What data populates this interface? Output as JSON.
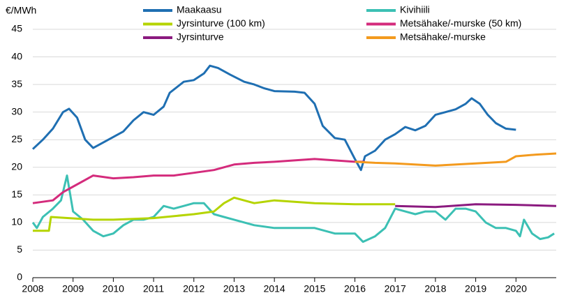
{
  "chart_data": {
    "type": "line",
    "y_label": "€/MWh",
    "xlim": [
      2008,
      2021
    ],
    "xticks": [
      2008,
      2009,
      2010,
      2011,
      2012,
      2013,
      2014,
      2015,
      2016,
      2017,
      2018,
      2019,
      2020
    ],
    "ylim": [
      0,
      45
    ],
    "yticks": [
      0,
      5,
      10,
      15,
      20,
      25,
      30,
      35,
      40,
      45
    ],
    "grid": true,
    "series": [
      {
        "name": "Maakaasu",
        "color": "#1f6fb2",
        "x": [
          2008.0,
          2008.25,
          2008.5,
          2008.75,
          2008.9,
          2009.1,
          2009.3,
          2009.5,
          2009.75,
          2010.0,
          2010.25,
          2010.5,
          2010.75,
          2011.0,
          2011.25,
          2011.4,
          2011.75,
          2012.0,
          2012.25,
          2012.4,
          2012.6,
          2012.9,
          2013.25,
          2013.5,
          2013.75,
          2014.0,
          2014.5,
          2014.75,
          2015.0,
          2015.2,
          2015.5,
          2015.75,
          2016.0,
          2016.15,
          2016.25,
          2016.5,
          2016.75,
          2017.0,
          2017.25,
          2017.5,
          2017.75,
          2018.0,
          2018.25,
          2018.5,
          2018.75,
          2018.9,
          2019.1,
          2019.3,
          2019.5,
          2019.75,
          2020.0
        ],
        "values": [
          23.3,
          25,
          27,
          30,
          30.6,
          29,
          25,
          23.5,
          24.5,
          25.5,
          26.5,
          28.5,
          30,
          29.5,
          31,
          33.5,
          35.5,
          35.8,
          37,
          38.4,
          38,
          36.8,
          35.5,
          35,
          34.3,
          33.8,
          33.7,
          33.5,
          31.5,
          27.5,
          25.3,
          25,
          21.5,
          19.5,
          22,
          23,
          25,
          26,
          27.3,
          26.7,
          27.5,
          29.5,
          30,
          30.5,
          31.5,
          32.5,
          31.5,
          29.5,
          28,
          27,
          26.8
        ]
      },
      {
        "name": "Kivihiili",
        "color": "#3cc0b4",
        "x": [
          2008.0,
          2008.1,
          2008.25,
          2008.5,
          2008.7,
          2008.85,
          2009.0,
          2009.25,
          2009.5,
          2009.75,
          2010.0,
          2010.25,
          2010.5,
          2010.75,
          2011.0,
          2011.25,
          2011.5,
          2011.75,
          2012.0,
          2012.25,
          2012.5,
          2012.75,
          2013.0,
          2013.5,
          2014.0,
          2014.5,
          2015.0,
          2015.5,
          2016.0,
          2016.2,
          2016.5,
          2016.75,
          2017.0,
          2017.25,
          2017.5,
          2017.75,
          2018.0,
          2018.25,
          2018.5,
          2018.75,
          2019.0,
          2019.25,
          2019.5,
          2019.75,
          2020.0,
          2020.1,
          2020.2,
          2020.4,
          2020.6,
          2020.8,
          2020.95
        ],
        "values": [
          10,
          9,
          11,
          12.5,
          14,
          18.5,
          12,
          10.5,
          8.5,
          7.5,
          8,
          9.5,
          10.5,
          10.5,
          11,
          13,
          12.5,
          13,
          13.5,
          13.5,
          11.5,
          11,
          10.5,
          9.5,
          9,
          9,
          9,
          8,
          8,
          6.5,
          7.5,
          9,
          12.5,
          12,
          11.5,
          12,
          12,
          10.5,
          12.5,
          12.5,
          12,
          10,
          9,
          9,
          8.5,
          7.5,
          10.5,
          8,
          7,
          7.3,
          8
        ]
      },
      {
        "name": "Jyrsinturve (100 km)",
        "color": "#b5d400",
        "x": [
          2008.0,
          2008.4,
          2008.45,
          2009.5,
          2010.0,
          2011.0,
          2012.0,
          2012.5,
          2012.75,
          2013.0,
          2013.5,
          2014.0,
          2015.0,
          2016.0,
          2017.0
        ],
        "values": [
          8.5,
          8.5,
          11,
          10.5,
          10.5,
          10.8,
          11.5,
          12,
          13.5,
          14.5,
          13.5,
          14,
          13.5,
          13.3,
          13.3
        ]
      },
      {
        "name": "Metsähake/-murske (50 km)",
        "color": "#d42b7c",
        "x": [
          2008.0,
          2008.5,
          2008.75,
          2009.0,
          2009.5,
          2010.0,
          2010.5,
          2011.0,
          2011.5,
          2012.0,
          2012.5,
          2013.0,
          2013.5,
          2014.0,
          2015.0,
          2016.0,
          2016.25
        ],
        "values": [
          13.5,
          14,
          15.5,
          16.5,
          18.5,
          18,
          18.2,
          18.5,
          18.5,
          19,
          19.5,
          20.5,
          20.8,
          21,
          21.5,
          21,
          21
        ]
      },
      {
        "name": "Jyrsinturve",
        "color": "#8b1a7f",
        "x": [
          2017.0,
          2018.0,
          2019.0,
          2020.0,
          2021.0
        ],
        "values": [
          13,
          12.8,
          13.3,
          13.2,
          13
        ]
      },
      {
        "name": "Metsähake/-murske",
        "color": "#f39a1e",
        "x": [
          2016.0,
          2016.5,
          2017.0,
          2018.0,
          2019.0,
          2019.75,
          2020.0,
          2020.5,
          2021.0
        ],
        "values": [
          21,
          20.8,
          20.7,
          20.3,
          20.7,
          21,
          22,
          22.3,
          22.5
        ]
      }
    ]
  }
}
